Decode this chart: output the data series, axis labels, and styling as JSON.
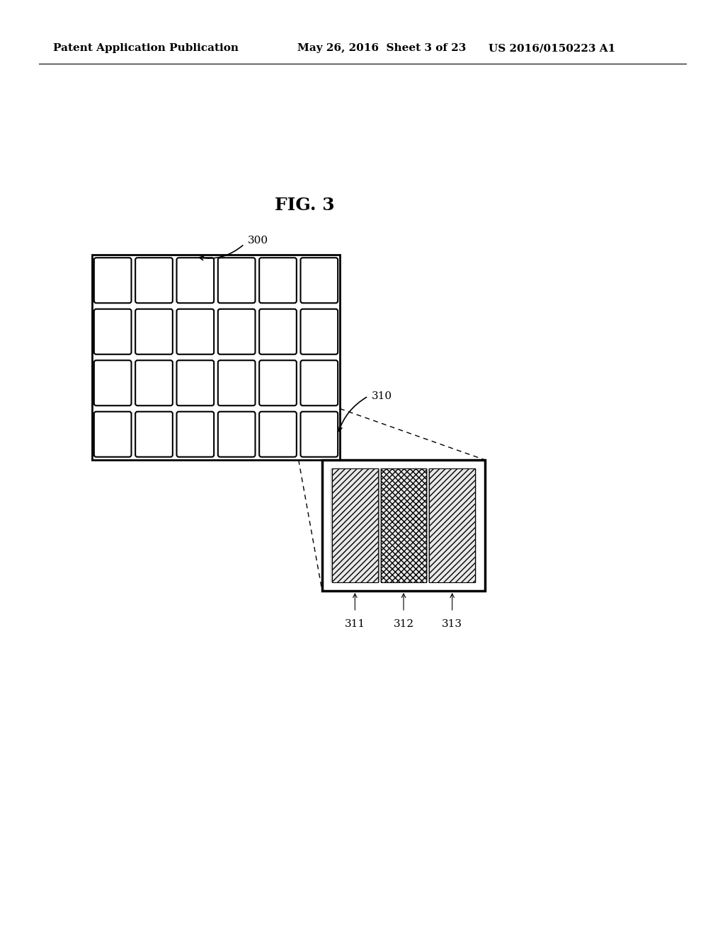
{
  "title": "FIG. 3",
  "header_left": "Patent Application Publication",
  "header_center": "May 26, 2016  Sheet 3 of 23",
  "header_right": "US 2016/0150223 A1",
  "bg_color": "#ffffff",
  "grid_rows": 4,
  "grid_cols": 6,
  "grid_label": "300",
  "cell_label": "310",
  "zoom_box_label_311": "311",
  "zoom_box_label_312": "312",
  "zoom_box_label_313": "313",
  "hatch_single": "////",
  "hatch_cross": "xxxx"
}
